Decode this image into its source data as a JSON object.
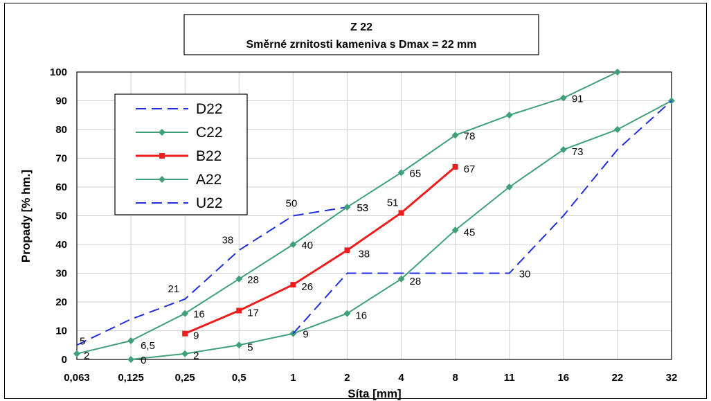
{
  "chart_data": {
    "type": "line",
    "title": "Z 22",
    "subtitle": "Směrné zrnitosti kameniva s Dmax = 22 mm",
    "xlabel": "Síta [mm]",
    "ylabel": "Propady [% hm.]",
    "categories": [
      "0,063",
      "0,125",
      "0,25",
      "0,5",
      "1",
      "2",
      "4",
      "8",
      "11",
      "16",
      "22",
      "32"
    ],
    "ylim": [
      0,
      100
    ],
    "yticks": [
      "0",
      "10",
      "20",
      "30",
      "40",
      "50",
      "60",
      "70",
      "80",
      "90",
      "100"
    ],
    "grid": true,
    "legend_position": "top-left",
    "colors": {
      "blue": "#1f2fe0",
      "green": "#3f9f78",
      "red": "#ee1c1c"
    },
    "series": [
      {
        "name": "D22",
        "style": "dashed",
        "color": "blue",
        "marker": "none",
        "points": [
          [
            0,
            5
          ],
          [
            1,
            14
          ],
          [
            2,
            21
          ],
          [
            3,
            38
          ],
          [
            4,
            50
          ],
          [
            5,
            53
          ]
        ],
        "labels": [
          [
            0,
            "5"
          ],
          [
            2,
            "21"
          ],
          [
            3,
            "38"
          ],
          [
            4,
            "50"
          ],
          [
            5,
            "53"
          ]
        ]
      },
      {
        "name": "C22",
        "style": "solid",
        "color": "green",
        "marker": "diamond",
        "points": [
          [
            0,
            2
          ],
          [
            1,
            6.5
          ],
          [
            2,
            16
          ],
          [
            3,
            28
          ],
          [
            4,
            40
          ],
          [
            5,
            53
          ],
          [
            6,
            65
          ],
          [
            7,
            78
          ],
          [
            8,
            85
          ],
          [
            9,
            91
          ],
          [
            10,
            100
          ]
        ],
        "labels": [
          [
            0,
            "2"
          ],
          [
            1,
            "6,5"
          ],
          [
            2,
            "16"
          ],
          [
            3,
            "28"
          ],
          [
            4,
            "40"
          ],
          [
            5,
            "53"
          ],
          [
            6,
            "65"
          ],
          [
            7,
            "78"
          ],
          [
            9,
            "91"
          ]
        ]
      },
      {
        "name": "B22",
        "style": "solid",
        "color": "red",
        "marker": "square",
        "points": [
          [
            2,
            9
          ],
          [
            3,
            17
          ],
          [
            4,
            26
          ],
          [
            5,
            38
          ],
          [
            6,
            51
          ],
          [
            7,
            67
          ]
        ],
        "labels": [
          [
            2,
            "9"
          ],
          [
            3,
            "17"
          ],
          [
            4,
            "26"
          ],
          [
            5,
            "38"
          ],
          [
            6,
            "51"
          ],
          [
            7,
            "67"
          ]
        ]
      },
      {
        "name": "A22",
        "style": "solid",
        "color": "green",
        "marker": "diamond",
        "points": [
          [
            1,
            0
          ],
          [
            2,
            2
          ],
          [
            3,
            5
          ],
          [
            4,
            9
          ],
          [
            5,
            16
          ],
          [
            6,
            28
          ],
          [
            7,
            45
          ],
          [
            8,
            60
          ],
          [
            9,
            73
          ],
          [
            10,
            80
          ],
          [
            11,
            90
          ]
        ],
        "labels": [
          [
            1,
            "0"
          ],
          [
            2,
            "2"
          ],
          [
            3,
            "5"
          ],
          [
            4,
            "9"
          ],
          [
            5,
            "16"
          ],
          [
            6,
            "28"
          ],
          [
            7,
            "45"
          ],
          [
            9,
            "73"
          ]
        ]
      },
      {
        "name": "U22",
        "style": "dashed",
        "color": "blue",
        "marker": "none",
        "points": [
          [
            4,
            9
          ],
          [
            5,
            30
          ],
          [
            6,
            30
          ],
          [
            7,
            30
          ],
          [
            8,
            30
          ],
          [
            9,
            50
          ],
          [
            10,
            73
          ],
          [
            11,
            90
          ]
        ],
        "labels": [
          [
            8,
            "30"
          ]
        ]
      }
    ]
  }
}
